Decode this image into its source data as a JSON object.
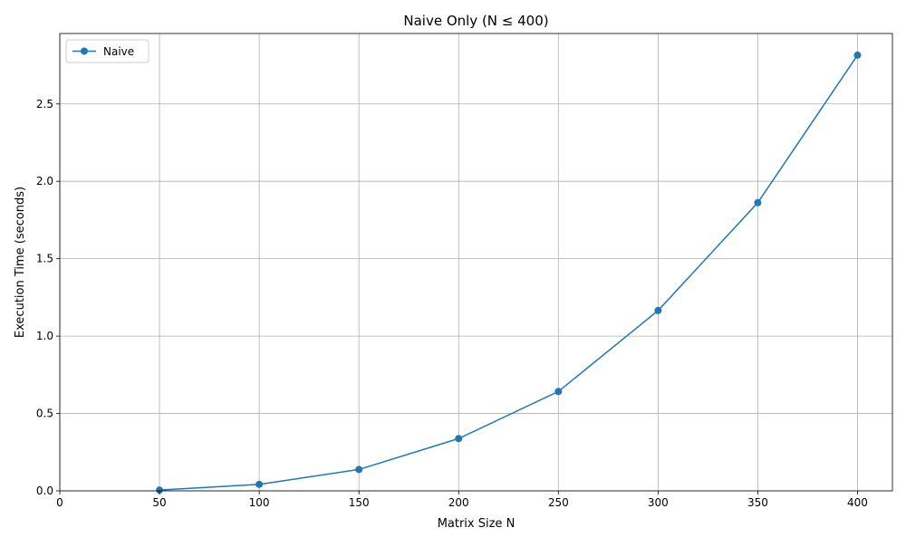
{
  "chart_data": {
    "type": "line",
    "title": "Naive Only (N ≤ 400)",
    "xlabel": "Matrix Size N",
    "ylabel": "Execution Time (seconds)",
    "xlim": [
      0,
      417.5
    ],
    "ylim": [
      0,
      2.955
    ],
    "x_ticks": [
      0,
      50,
      100,
      150,
      200,
      250,
      300,
      350,
      400
    ],
    "x_tick_labels": [
      "0",
      "50",
      "100",
      "150",
      "200",
      "250",
      "300",
      "350",
      "400"
    ],
    "y_ticks": [
      0.0,
      0.5,
      1.0,
      1.5,
      2.0,
      2.5
    ],
    "y_tick_labels": [
      "0.0",
      "0.5",
      "1.0",
      "1.5",
      "2.0",
      "2.5"
    ],
    "grid": true,
    "legend_position": "top-left",
    "series": [
      {
        "name": "Naive",
        "color": "#1f77b4",
        "marker": "circle",
        "x": [
          50,
          100,
          150,
          200,
          250,
          300,
          350,
          400
        ],
        "y": [
          0.005,
          0.042,
          0.138,
          0.338,
          0.642,
          1.165,
          1.862,
          2.815
        ]
      }
    ]
  }
}
